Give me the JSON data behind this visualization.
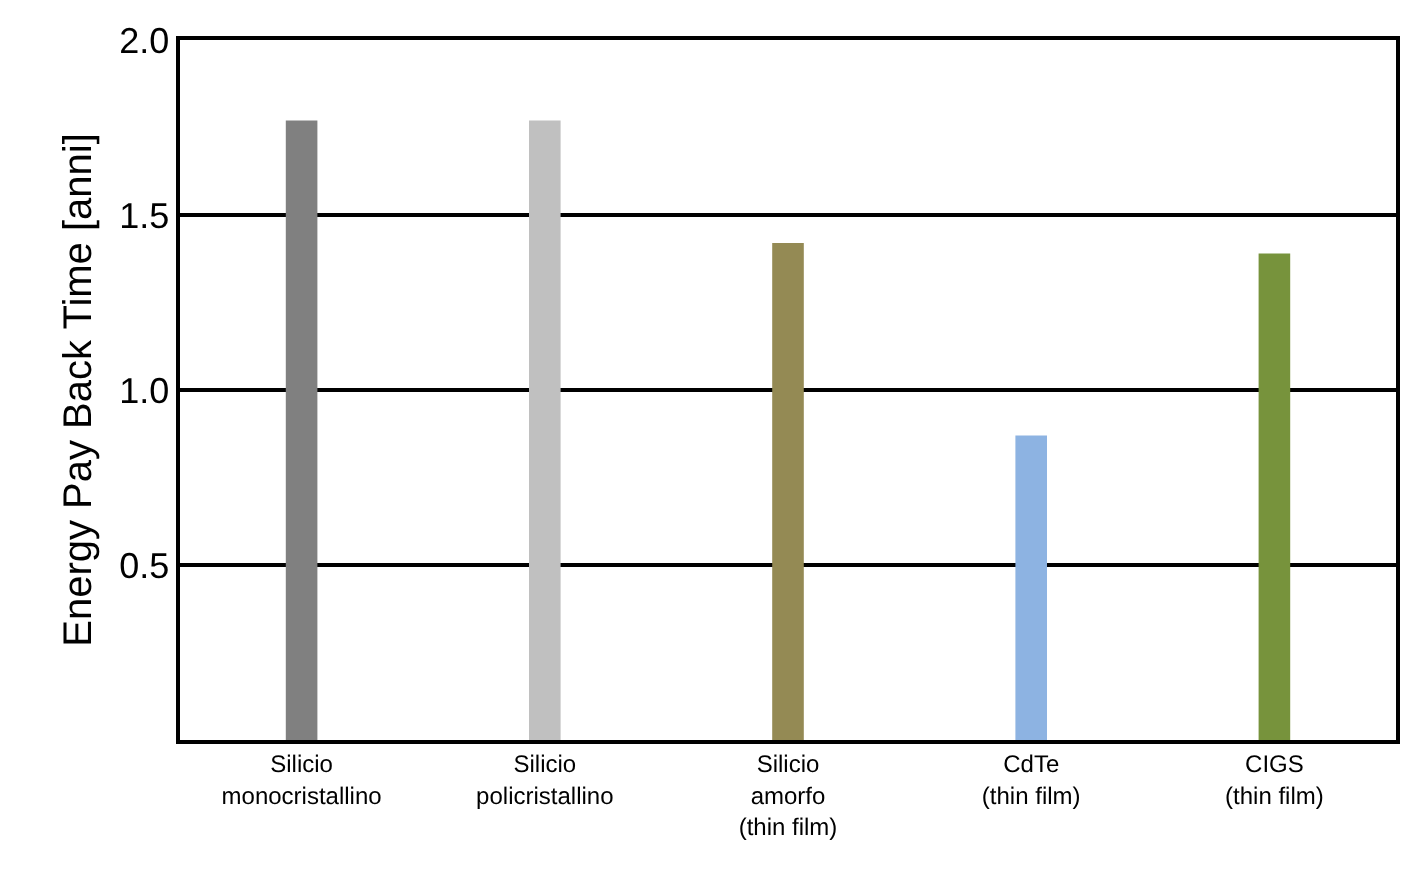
{
  "chart_data": {
    "type": "bar",
    "ylabel": "Energy Pay Back Time [anni]",
    "categories": [
      "Silicio\nmonocristallino",
      "Silicio\npolicristallino",
      "Silicio\namorfo\n(thin film)",
      "CdTe\n(thin film)",
      "CIGS\n(thin film)"
    ],
    "values": [
      1.77,
      1.77,
      1.42,
      0.87,
      1.39
    ],
    "colors": [
      "#808080",
      "#c0c0c0",
      "#948a54",
      "#8db3e2",
      "#77933c"
    ],
    "ylim": [
      0,
      2
    ],
    "yticks": [
      {
        "value": 0.5,
        "label": "0.5"
      },
      {
        "value": 1,
        "label": "1.0"
      },
      {
        "value": 1.5,
        "label": "1.5"
      },
      {
        "value": 2,
        "label": "2.0"
      }
    ],
    "grid": "y"
  }
}
